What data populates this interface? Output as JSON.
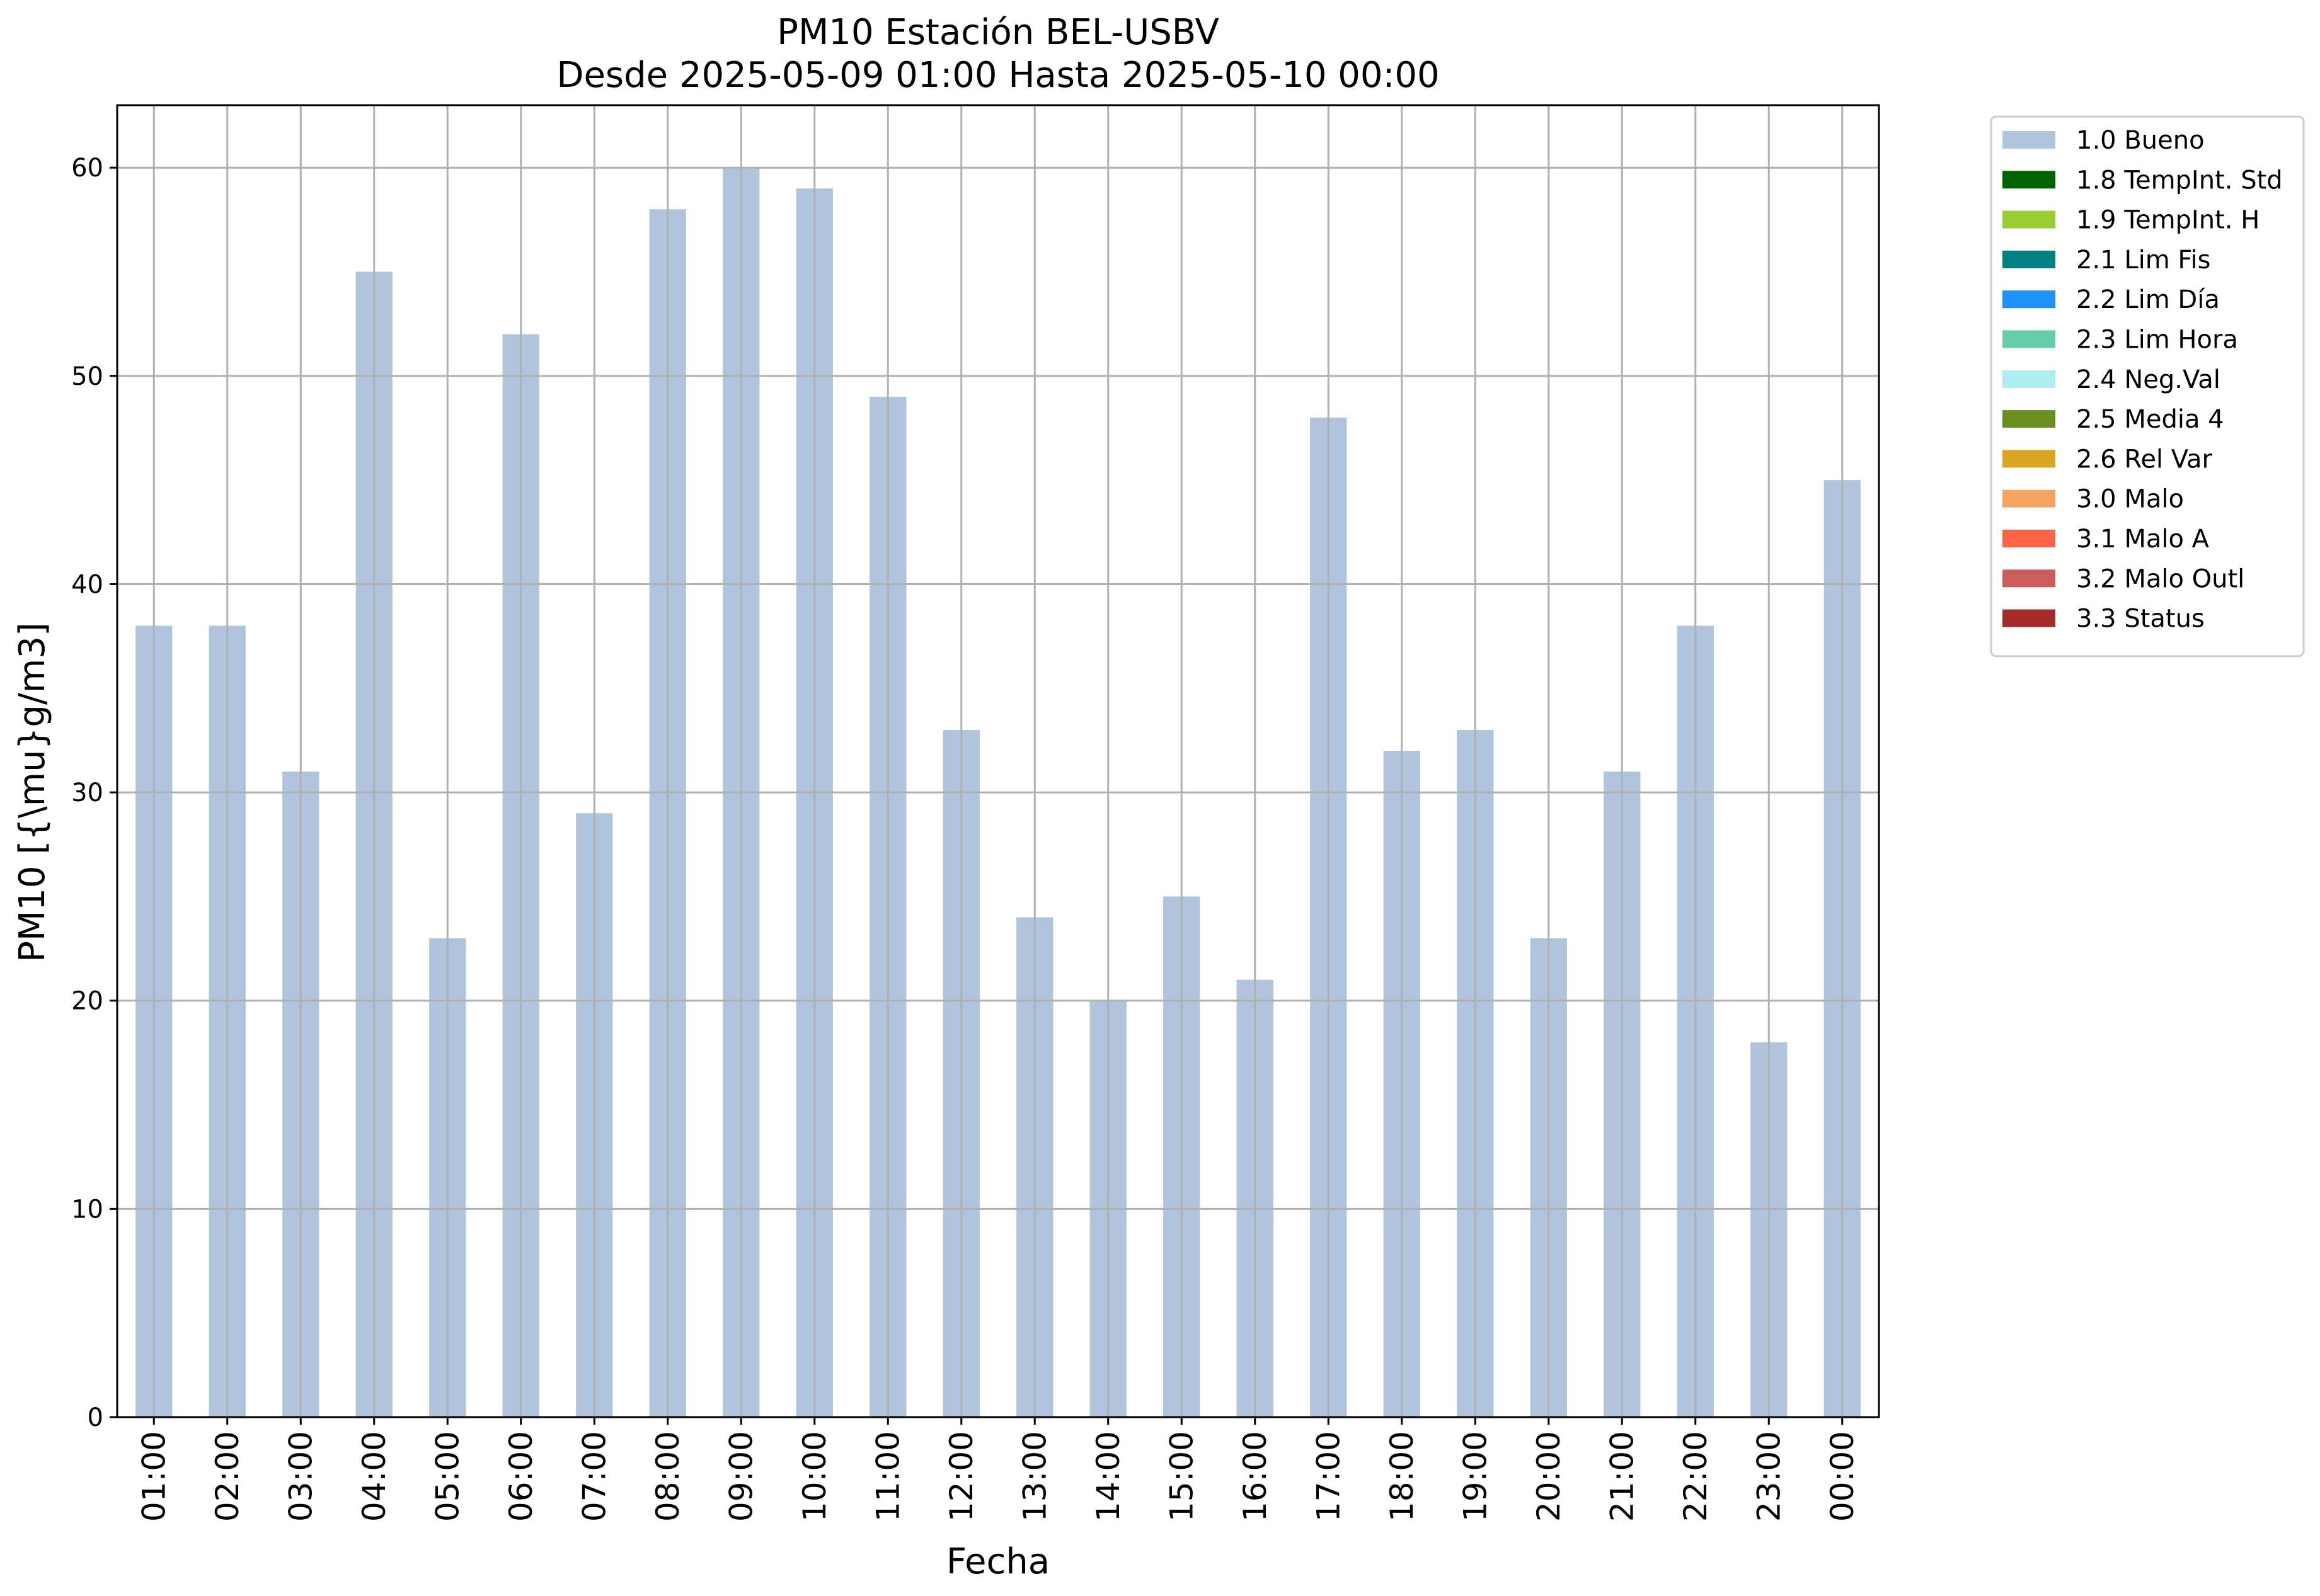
{
  "chart_data": {
    "type": "bar",
    "title": "PM10 Estación BEL-USBV",
    "subtitle": "Desde 2025-05-09 01:00 Hasta 2025-05-10 00:00",
    "xlabel": "Fecha",
    "ylabel": "PM10 [{\\mu}g/m3]",
    "ylim": [
      0,
      63
    ],
    "yticks": [
      0,
      10,
      20,
      30,
      40,
      50,
      60
    ],
    "grid": true,
    "legend_position": "outside-top-right",
    "categories": [
      "01:00",
      "02:00",
      "03:00",
      "04:00",
      "05:00",
      "06:00",
      "07:00",
      "08:00",
      "09:00",
      "10:00",
      "11:00",
      "12:00",
      "13:00",
      "14:00",
      "15:00",
      "16:00",
      "17:00",
      "18:00",
      "19:00",
      "20:00",
      "21:00",
      "22:00",
      "23:00",
      "00:00"
    ],
    "series": [
      {
        "name": "1.0 Bueno",
        "color": "#b0c4de",
        "values": [
          38,
          38,
          31,
          55,
          23,
          52,
          29,
          58,
          60,
          59,
          49,
          33,
          24,
          20,
          25,
          21,
          48,
          32,
          33,
          23,
          31,
          38,
          18,
          45
        ]
      }
    ],
    "legend": [
      {
        "label": "1.0 Bueno",
        "color": "#b0c4de"
      },
      {
        "label": "1.8 TempInt. Std",
        "color": "#006400"
      },
      {
        "label": "1.9 TempInt. H",
        "color": "#9acd32"
      },
      {
        "label": "2.1 Lim Fis",
        "color": "#008080"
      },
      {
        "label": "2.2 Lim Día",
        "color": "#1e90ff"
      },
      {
        "label": "2.3 Lim Hora",
        "color": "#66cdaa"
      },
      {
        "label": "2.4 Neg.Val",
        "color": "#afeeee"
      },
      {
        "label": "2.5 Media 4",
        "color": "#6b8e23"
      },
      {
        "label": "2.6 Rel Var",
        "color": "#daa520"
      },
      {
        "label": "3.0 Malo",
        "color": "#f4a460"
      },
      {
        "label": "3.1 Malo A",
        "color": "#ff6347"
      },
      {
        "label": "3.2 Malo Outl",
        "color": "#cd5c5c"
      },
      {
        "label": "3.3 Status",
        "color": "#a52a2a"
      }
    ]
  }
}
